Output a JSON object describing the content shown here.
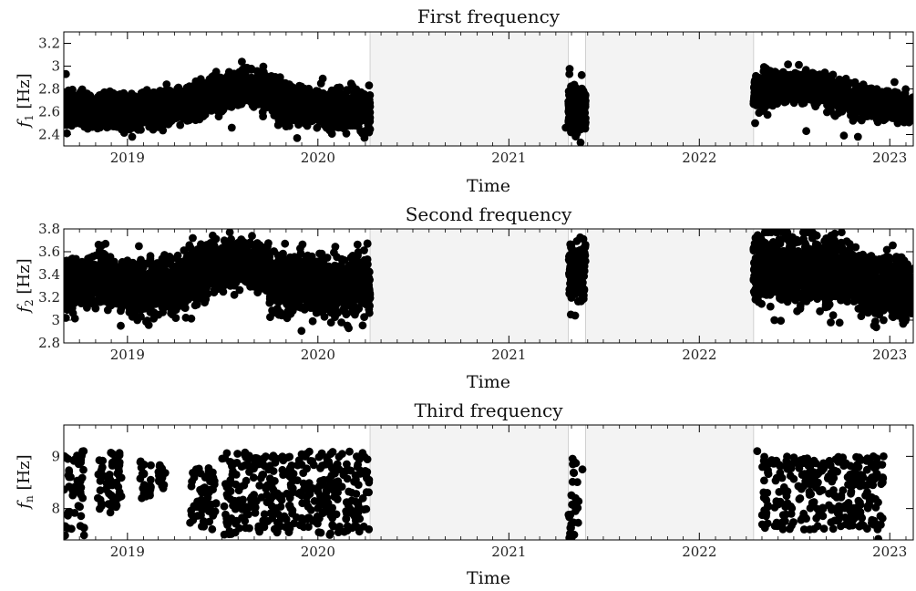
{
  "chart_data": [
    {
      "type": "scatter",
      "title": "First frequency",
      "xlabel": "Time",
      "ylabel": {
        "symbol": "f",
        "subscript": "1",
        "unit": " [Hz]"
      },
      "xlim": [
        "2018-09-01",
        "2023-02-15"
      ],
      "ylim": [
        2.3,
        3.3
      ],
      "yticks": [
        2.4,
        2.6,
        2.8,
        3,
        3.2
      ],
      "yticklabels": [
        "2.4",
        "2.6",
        "2.8",
        "3",
        "3.2"
      ],
      "xticks": [
        "2019-01-01",
        "2020-01-01",
        "2021-01-01",
        "2022-01-01",
        "2023-01-01"
      ],
      "xticklabels": [
        "2019",
        "2020",
        "2021",
        "2022",
        "2023"
      ],
      "gaps": [
        [
          "2020-04-10",
          "2021-04-25"
        ],
        [
          "2021-05-28",
          "2022-04-15"
        ]
      ],
      "segments": [
        {
          "from": "2018-09-01",
          "to": "2019-06-01",
          "base": [
            2.64,
            2.6,
            2.7
          ],
          "spread": 0.07
        },
        {
          "from": "2019-06-01",
          "to": "2019-10-15",
          "base": [
            2.72,
            2.82,
            2.76
          ],
          "spread": 0.07
        },
        {
          "from": "2019-10-15",
          "to": "2020-04-10",
          "base": [
            2.7,
            2.62,
            2.62
          ],
          "spread": 0.08
        },
        {
          "from": "2021-04-25",
          "to": "2021-05-28",
          "base": [
            2.7,
            2.6,
            2.65
          ],
          "spread": 0.1
        },
        {
          "from": "2022-04-15",
          "to": "2022-09-01",
          "base": [
            2.77,
            2.83,
            2.8
          ],
          "spread": 0.07
        },
        {
          "from": "2022-09-01",
          "to": "2023-02-15",
          "base": [
            2.75,
            2.68,
            2.62
          ],
          "spread": 0.06
        }
      ],
      "points": [
        {
          "x": "2018-09-05",
          "y": 2.93
        },
        {
          "x": "2018-09-07",
          "y": 2.41
        },
        {
          "x": "2019-01-10",
          "y": 2.38
        },
        {
          "x": "2019-06-20",
          "y": 2.95
        },
        {
          "x": "2019-07-20",
          "y": 2.46
        },
        {
          "x": "2020-04-05",
          "y": 2.52
        },
        {
          "x": "2021-04-27",
          "y": 2.93
        },
        {
          "x": "2021-04-30",
          "y": 2.42
        },
        {
          "x": "2021-04-20",
          "y": 2.46
        },
        {
          "x": "2022-04-18",
          "y": 2.5
        },
        {
          "x": "2022-07-25",
          "y": 2.43
        },
        {
          "x": "2022-10-05",
          "y": 2.39
        },
        {
          "x": "2022-11-01",
          "y": 2.38
        },
        {
          "x": "2023-01-10",
          "y": 2.86
        },
        {
          "x": "2023-01-20",
          "y": 2.6
        },
        {
          "x": "2023-01-28",
          "y": 2.58
        }
      ]
    },
    {
      "type": "scatter",
      "title": "Second frequency",
      "xlabel": "Time",
      "ylabel": {
        "symbol": "f",
        "subscript": "2",
        "unit": " [Hz]"
      },
      "xlim": [
        "2018-09-01",
        "2023-02-15"
      ],
      "ylim": [
        2.8,
        3.8
      ],
      "yticks": [
        2.8,
        3,
        3.2,
        3.4,
        3.6,
        3.8
      ],
      "yticklabels": [
        "2.8",
        "3",
        "3.2",
        "3.4",
        "3.6",
        "3.8"
      ],
      "xticks": [
        "2019-01-01",
        "2020-01-01",
        "2021-01-01",
        "2022-01-01",
        "2023-01-01"
      ],
      "xticklabels": [
        "2019",
        "2020",
        "2021",
        "2022",
        "2023"
      ],
      "gaps": [
        [
          "2020-04-10",
          "2021-04-25"
        ],
        [
          "2021-05-28",
          "2022-04-15"
        ]
      ],
      "segments": [
        {
          "from": "2018-09-01",
          "to": "2019-01-01",
          "base": [
            3.3,
            3.35,
            3.3
          ],
          "spread": 0.1
        },
        {
          "from": "2019-01-01",
          "to": "2019-06-01",
          "base": [
            3.25,
            3.3,
            3.4
          ],
          "spread": 0.12
        },
        {
          "from": "2019-06-01",
          "to": "2019-10-01",
          "base": [
            3.45,
            3.5,
            3.45
          ],
          "spread": 0.1
        },
        {
          "from": "2019-10-01",
          "to": "2020-04-10",
          "base": [
            3.35,
            3.3,
            3.3
          ],
          "spread": 0.12
        },
        {
          "from": "2021-04-25",
          "to": "2021-05-28",
          "base": [
            3.45,
            3.4,
            3.45
          ],
          "spread": 0.12
        },
        {
          "from": "2022-04-15",
          "to": "2022-10-01",
          "base": [
            3.45,
            3.45,
            3.4
          ],
          "spread": 0.14
        },
        {
          "from": "2022-10-01",
          "to": "2023-02-15",
          "base": [
            3.4,
            3.3,
            3.25
          ],
          "spread": 0.12
        }
      ],
      "points": [
        {
          "x": "2018-09-05",
          "y": 3.02
        },
        {
          "x": "2018-11-20",
          "y": 3.67
        },
        {
          "x": "2019-01-20",
          "y": 3.0
        },
        {
          "x": "2020-02-15",
          "y": 2.98
        },
        {
          "x": "2020-04-05",
          "y": 3.67
        },
        {
          "x": "2021-05-08",
          "y": 3.04
        },
        {
          "x": "2022-05-25",
          "y": 3.0
        },
        {
          "x": "2022-09-10",
          "y": 2.98
        },
        {
          "x": "2022-12-20",
          "y": 3.0
        },
        {
          "x": "2023-01-15",
          "y": 3.3
        },
        {
          "x": "2023-01-25",
          "y": 3.2
        },
        {
          "x": "2023-02-10",
          "y": 3.14
        }
      ]
    },
    {
      "type": "scatter",
      "title": "Third frequency",
      "xlabel": "Time",
      "ylabel": {
        "symbol": "f",
        "subscript": "n",
        "unit": " [Hz]"
      },
      "xlim": [
        "2018-09-01",
        "2023-02-15"
      ],
      "ylim": [
        7.4,
        9.6
      ],
      "yticks": [
        8,
        9
      ],
      "yticklabels": [
        "8",
        "9"
      ],
      "xticks": [
        "2019-01-01",
        "2020-01-01",
        "2021-01-01",
        "2022-01-01",
        "2023-01-01"
      ],
      "xticklabels": [
        "2019",
        "2020",
        "2021",
        "2022",
        "2023"
      ],
      "gaps": [
        [
          "2020-04-10",
          "2021-04-25"
        ],
        [
          "2021-05-28",
          "2022-04-15"
        ]
      ],
      "clusters": [
        {
          "from": "2018-09-01",
          "to": "2018-10-10",
          "ymin": 7.45,
          "ymax": 9.1
        },
        {
          "from": "2018-11-05",
          "to": "2018-12-25",
          "ymin": 7.9,
          "ymax": 9.1
        },
        {
          "from": "2019-01-25",
          "to": "2019-02-15",
          "ymin": 8.2,
          "ymax": 9.0
        },
        {
          "from": "2019-03-01",
          "to": "2019-03-15",
          "ymin": 8.3,
          "ymax": 8.9
        },
        {
          "from": "2019-05-01",
          "to": "2019-06-20",
          "ymin": 7.6,
          "ymax": 8.85
        },
        {
          "from": "2019-07-01",
          "to": "2019-12-15",
          "ymin": 7.5,
          "ymax": 9.1
        },
        {
          "from": "2019-12-15",
          "to": "2020-04-08",
          "ymin": 7.45,
          "ymax": 9.1
        },
        {
          "from": "2021-04-25",
          "to": "2021-05-15",
          "ymin": 7.45,
          "ymax": 9.0
        },
        {
          "from": "2022-05-01",
          "to": "2022-12-20",
          "ymin": 7.6,
          "ymax": 9.0
        }
      ],
      "points": [
        {
          "x": "2020-04-08",
          "y": 8.55
        },
        {
          "x": "2021-05-22",
          "y": 8.75
        },
        {
          "x": "2022-04-22",
          "y": 9.1
        },
        {
          "x": "2022-12-20",
          "y": 9.0
        },
        {
          "x": "2022-12-10",
          "y": 7.42
        },
        {
          "x": "2021-04-27",
          "y": 7.44
        }
      ]
    }
  ]
}
